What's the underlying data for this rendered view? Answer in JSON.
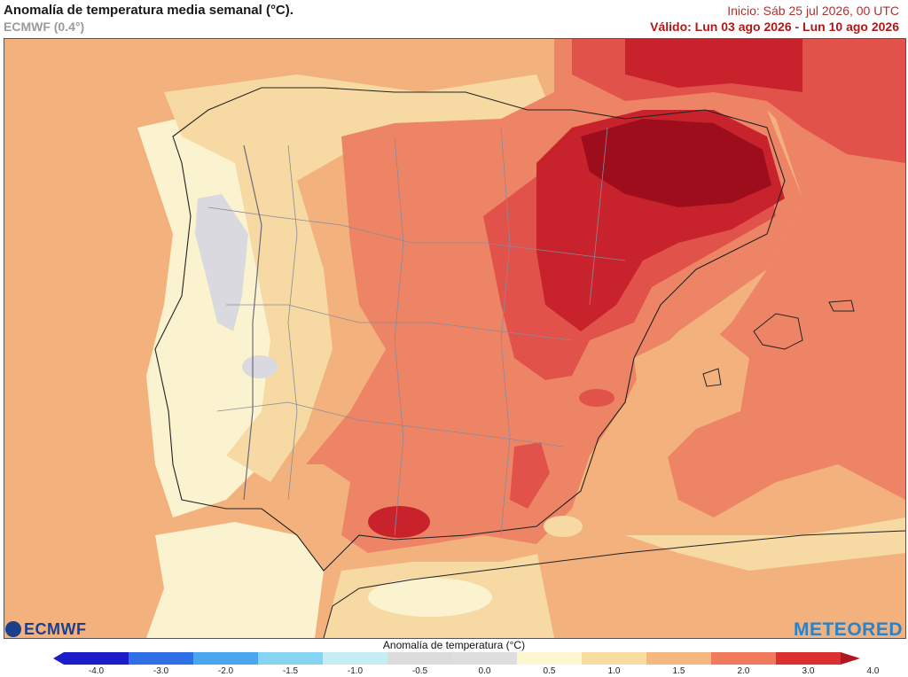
{
  "header": {
    "title": "Anomalía de temperatura media semanal (°C).",
    "model": "ECMWF (0.4°)",
    "init": "Inicio: Sáb 25 jul 2026, 00 UTC",
    "valid": "Válido: Lun 03 ago 2026 - Lun 10 ago 2026"
  },
  "logos": {
    "left": "ECMWF",
    "right": "METEORED"
  },
  "colorbar": {
    "title": "Anomalía de temperatura (°C)",
    "ticks": [
      "-4.0",
      "-3.0",
      "-2.0",
      "-1.5",
      "-1.0",
      "-0.5",
      "0.0",
      "0.5",
      "1.0",
      "1.5",
      "2.0",
      "3.0",
      "4.0"
    ],
    "colors": [
      "#1c1cc8",
      "#2f6fe6",
      "#4aa6ee",
      "#86d3f2",
      "#c6ecf4",
      "#dcdcdc",
      "#dedede",
      "#fbf6cf",
      "#f8dca0",
      "#f4b880",
      "#ef7a5e",
      "#dc3030"
    ],
    "colors_note": "bins from -4.0 to 4.0"
  },
  "map": {
    "region": "Península Ibérica",
    "legend_colors": {
      "gray": "#d9d9df",
      "pale_yellow": "#fbf3cf",
      "light_orange": "#f6d9a3",
      "orange": "#f3b27d",
      "salmon": "#ee8466",
      "red": "#e0524a",
      "dark_red": "#c8222c",
      "darkest_red": "#9e0d1c"
    }
  }
}
